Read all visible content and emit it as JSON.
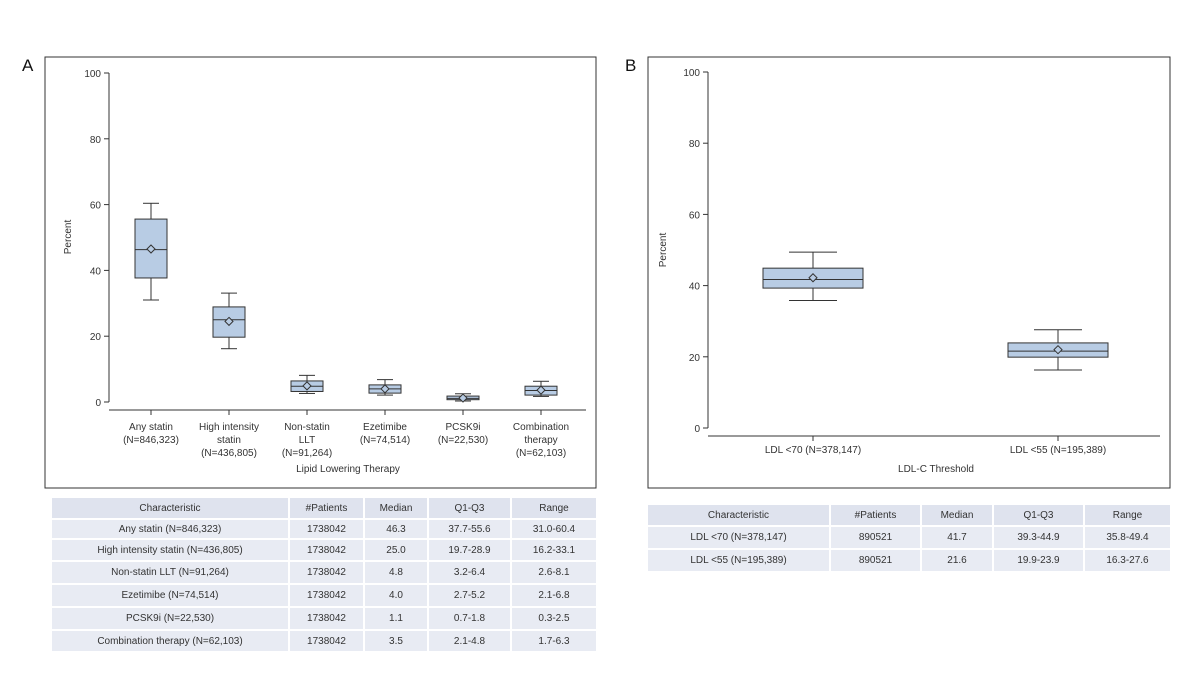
{
  "panels": [
    {
      "letter": "A",
      "chart_data": {
        "type": "box",
        "title": "",
        "xlabel": "Lipid Lowering Therapy",
        "ylabel": "Percent",
        "ylim": [
          0,
          100
        ],
        "yticks": [
          "0",
          "20",
          "40",
          "60",
          "80",
          "100"
        ],
        "categories": [
          {
            "line1": "Any statin",
            "line2": "(N=846,323)",
            "line3": ""
          },
          {
            "line1": "High intensity",
            "line2": "statin",
            "line3": "(N=436,805)"
          },
          {
            "line1": "Non-statin",
            "line2": "LLT",
            "line3": "(N=91,264)"
          },
          {
            "line1": "Ezetimibe",
            "line2": "(N=74,514)",
            "line3": ""
          },
          {
            "line1": "PCSK9i",
            "line2": "(N=22,530)",
            "line3": ""
          },
          {
            "line1": "Combination",
            "line2": "therapy",
            "line3": "(N=62,103)"
          }
        ],
        "boxes": [
          {
            "min": 31.0,
            "q1": 37.7,
            "median": 46.3,
            "q3": 55.6,
            "max": 60.4,
            "mean": 46.5
          },
          {
            "min": 16.2,
            "q1": 19.7,
            "median": 25.0,
            "q3": 28.9,
            "max": 33.1,
            "mean": 24.5
          },
          {
            "min": 2.6,
            "q1": 3.2,
            "median": 4.8,
            "q3": 6.4,
            "max": 8.1,
            "mean": 4.9
          },
          {
            "min": 2.1,
            "q1": 2.7,
            "median": 4.0,
            "q3": 5.2,
            "max": 6.8,
            "mean": 4.0
          },
          {
            "min": 0.3,
            "q1": 0.7,
            "median": 1.1,
            "q3": 1.8,
            "max": 2.5,
            "mean": 1.2
          },
          {
            "min": 1.7,
            "q1": 2.1,
            "median": 3.5,
            "q3": 4.8,
            "max": 6.3,
            "mean": 3.6
          }
        ],
        "box_color": "#b8cce4",
        "line_color": "#333333"
      },
      "table": {
        "headers": [
          "Characteristic",
          "#Patients",
          "Median",
          "Q1-Q3",
          "Range"
        ],
        "rows": [
          [
            "Any statin (N=846,323)",
            "1738042",
            "46.3",
            "37.7-55.6",
            "31.0-60.4"
          ],
          [
            "High intensity statin (N=436,805)",
            "1738042",
            "25.0",
            "19.7-28.9",
            "16.2-33.1"
          ],
          [
            "Non-statin LLT (N=91,264)",
            "1738042",
            "4.8",
            "3.2-6.4",
            "2.6-8.1"
          ],
          [
            "Ezetimibe (N=74,514)",
            "1738042",
            "4.0",
            "2.7-5.2",
            "2.1-6.8"
          ],
          [
            "PCSK9i (N=22,530)",
            "1738042",
            "1.1",
            "0.7-1.8",
            "0.3-2.5"
          ],
          [
            "Combination therapy (N=62,103)",
            "1738042",
            "3.5",
            "2.1-4.8",
            "1.7-6.3"
          ]
        ]
      }
    },
    {
      "letter": "B",
      "chart_data": {
        "type": "box",
        "title": "",
        "xlabel": "LDL-C Threshold",
        "ylabel": "Percent",
        "ylim": [
          0,
          100
        ],
        "yticks": [
          "0",
          "20",
          "40",
          "60",
          "80",
          "100"
        ],
        "categories": [
          {
            "line1": "LDL <70 (N=378,147)",
            "line2": "",
            "line3": ""
          },
          {
            "line1": "LDL <55 (N=195,389)",
            "line2": "",
            "line3": ""
          }
        ],
        "boxes": [
          {
            "min": 35.8,
            "q1": 39.3,
            "median": 41.7,
            "q3": 44.9,
            "max": 49.4,
            "mean": 42.2
          },
          {
            "min": 16.3,
            "q1": 19.9,
            "median": 21.6,
            "q3": 23.9,
            "max": 27.6,
            "mean": 22.0
          }
        ],
        "box_color": "#b8cce4",
        "line_color": "#333333"
      },
      "table": {
        "headers": [
          "Characteristic",
          "#Patients",
          "Median",
          "Q1-Q3",
          "Range"
        ],
        "rows": [
          [
            "LDL <70 (N=378,147)",
            "890521",
            "41.7",
            "39.3-44.9",
            "35.8-49.4"
          ],
          [
            "LDL <55 (N=195,389)",
            "890521",
            "21.6",
            "19.9-23.9",
            "16.3-27.6"
          ]
        ]
      }
    }
  ]
}
